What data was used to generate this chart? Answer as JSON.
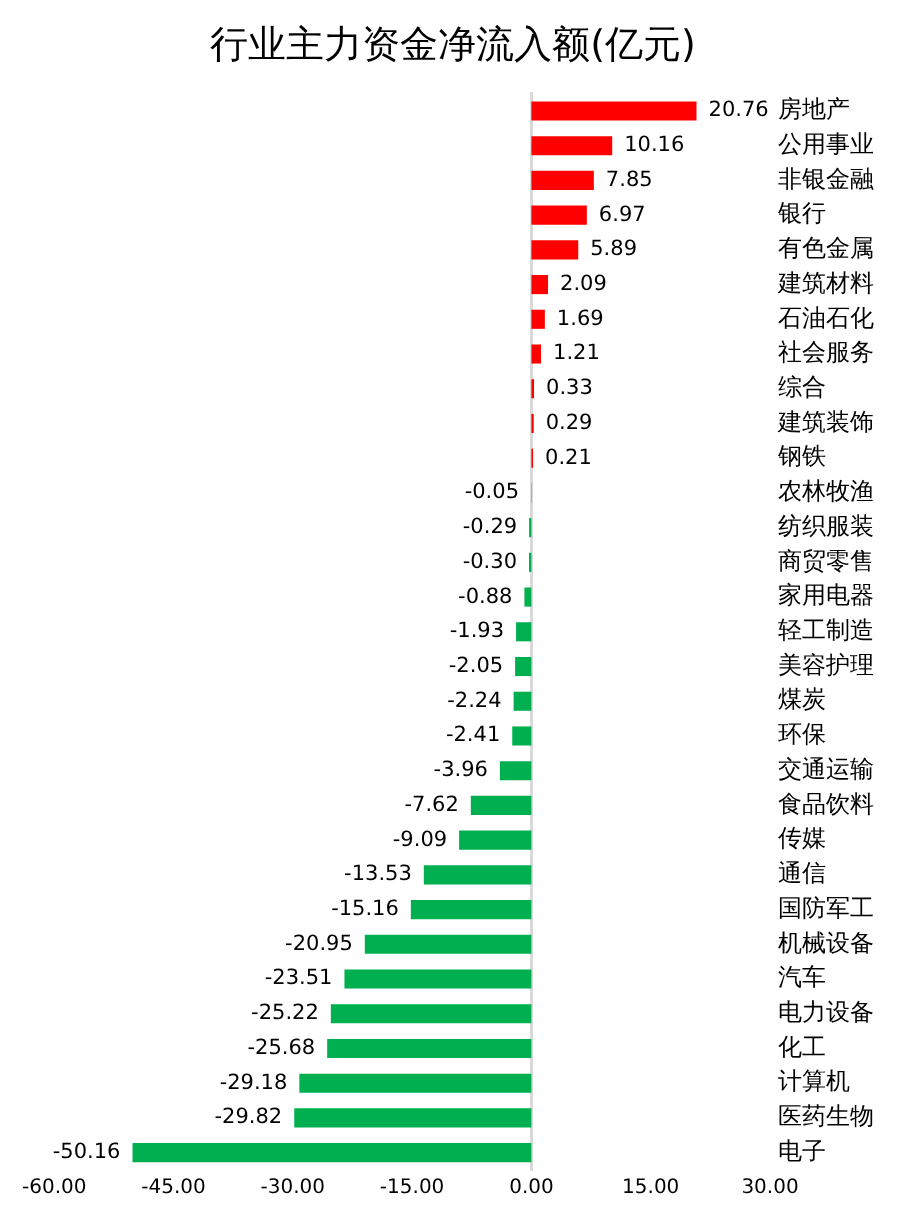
{
  "chart_data": {
    "type": "bar",
    "orientation": "horizontal",
    "title": "行业主力资金净流入额(亿元)",
    "categories": [
      "房地产",
      "公用事业",
      "非银金融",
      "银行",
      "有色金属",
      "建筑材料",
      "石油石化",
      "社会服务",
      "综合",
      "建筑装饰",
      "钢铁",
      "农林牧渔",
      "纺织服装",
      "商贸零售",
      "家用电器",
      "轻工制造",
      "美容护理",
      "煤炭",
      "环保",
      "交通运输",
      "食品饮料",
      "传媒",
      "通信",
      "国防军工",
      "机械设备",
      "汽车",
      "电力设备",
      "化工",
      "计算机",
      "医药生物",
      "电子"
    ],
    "values": [
      20.76,
      10.16,
      7.85,
      6.97,
      5.89,
      2.09,
      1.69,
      1.21,
      0.33,
      0.29,
      0.21,
      -0.05,
      -0.29,
      -0.3,
      -0.88,
      -1.93,
      -2.05,
      -2.24,
      -2.41,
      -3.96,
      -7.62,
      -9.09,
      -13.53,
      -15.16,
      -20.95,
      -23.51,
      -25.22,
      -25.68,
      -29.18,
      -29.82,
      -50.16
    ],
    "value_labels": [
      "20.76",
      "10.16",
      "7.85",
      "6.97",
      "5.89",
      "2.09",
      "1.69",
      "1.21",
      "0.33",
      "0.29",
      "0.21",
      "-0.05",
      "-0.29",
      "-0.30",
      "-0.88",
      "-1.93",
      "-2.05",
      "-2.24",
      "-2.41",
      "-3.96",
      "-7.62",
      "-9.09",
      "-13.53",
      "-15.16",
      "-20.95",
      "-23.51",
      "-25.22",
      "-25.68",
      "-29.18",
      "-29.82",
      "-50.16"
    ],
    "colors": [
      "#ff0000",
      "#ff0000",
      "#ff0000",
      "#ff0000",
      "#ff0000",
      "#ff0000",
      "#ff0000",
      "#ff0000",
      "#ff0000",
      "#ff0000",
      "#ff0000",
      "#00b050",
      "#00b050",
      "#00b050",
      "#00b050",
      "#00b050",
      "#00b050",
      "#00b050",
      "#00b050",
      "#00b050",
      "#00b050",
      "#00b050",
      "#00b050",
      "#00b050",
      "#00b050",
      "#00b050",
      "#00b050",
      "#00b050",
      "#00b050",
      "#00b050",
      "#00b050"
    ],
    "xlim": [
      -60,
      30
    ],
    "xticks": [
      {
        "value": -60,
        "label": "-60.00"
      },
      {
        "value": -45,
        "label": "-45.00"
      },
      {
        "value": -30,
        "label": "-30.00"
      },
      {
        "value": -15,
        "label": "-15.00"
      },
      {
        "value": 0,
        "label": "0.00"
      },
      {
        "value": 15,
        "label": "15.00"
      },
      {
        "value": 30,
        "label": "30.00"
      }
    ],
    "legend": false
  }
}
